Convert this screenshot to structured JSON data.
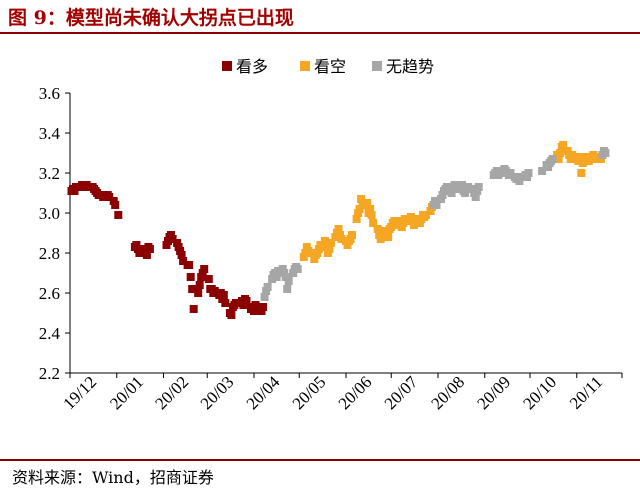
{
  "header": {
    "title": "图 9：模型尚未确认大拐点已出现"
  },
  "footer": {
    "source": "资料来源：Wind，招商证券"
  },
  "colors": {
    "bullish": "#8b0000",
    "bearish": "#f5a623",
    "neutral": "#a6a6a6",
    "rule": "#8a0000",
    "title": "#a30000"
  },
  "chart_data": {
    "type": "scatter",
    "title": "",
    "xlabel": "",
    "ylabel": "",
    "ylim": [
      2.2,
      3.6
    ],
    "yticks": [
      "2.2",
      "2.4",
      "2.6",
      "2.8",
      "3.0",
      "3.2",
      "3.4",
      "3.6"
    ],
    "xticks": [
      "19/12",
      "20/01",
      "20/02",
      "20/03",
      "20/04",
      "20/05",
      "20/06",
      "20/07",
      "20/08",
      "20/09",
      "20/10",
      "20/11"
    ],
    "xlim": [
      "2019-12-01",
      "2020-11-30"
    ],
    "grid": false,
    "legend_position": "top-center",
    "series": [
      {
        "name": "看多",
        "color": "#8b0000",
        "points": [
          [
            "2019-12-02",
            3.11
          ],
          [
            "2019-12-03",
            3.12
          ],
          [
            "2019-12-04",
            3.11
          ],
          [
            "2019-12-05",
            3.13
          ],
          [
            "2019-12-06",
            3.13
          ],
          [
            "2019-12-09",
            3.14
          ],
          [
            "2019-12-10",
            3.14
          ],
          [
            "2019-12-11",
            3.13
          ],
          [
            "2019-12-12",
            3.14
          ],
          [
            "2019-12-13",
            3.13
          ],
          [
            "2019-12-16",
            3.13
          ],
          [
            "2019-12-17",
            3.12
          ],
          [
            "2019-12-18",
            3.11
          ],
          [
            "2019-12-19",
            3.1
          ],
          [
            "2019-12-20",
            3.09
          ],
          [
            "2019-12-23",
            3.08
          ],
          [
            "2019-12-24",
            3.09
          ],
          [
            "2019-12-25",
            3.08
          ],
          [
            "2019-12-26",
            3.09
          ],
          [
            "2019-12-27",
            3.08
          ],
          [
            "2019-12-30",
            3.06
          ],
          [
            "2019-12-31",
            3.04
          ],
          [
            "2020-01-02",
            2.99
          ],
          [
            "2020-01-13",
            2.83
          ],
          [
            "2020-01-14",
            2.84
          ],
          [
            "2020-01-15",
            2.82
          ],
          [
            "2020-01-16",
            2.8
          ],
          [
            "2020-01-17",
            2.82
          ],
          [
            "2020-01-20",
            2.8
          ],
          [
            "2020-01-21",
            2.79
          ],
          [
            "2020-01-22",
            2.83
          ],
          [
            "2020-01-23",
            2.82
          ],
          [
            "2020-02-03",
            2.84
          ],
          [
            "2020-02-04",
            2.86
          ],
          [
            "2020-02-05",
            2.88
          ],
          [
            "2020-02-06",
            2.89
          ],
          [
            "2020-02-07",
            2.87
          ],
          [
            "2020-02-10",
            2.85
          ],
          [
            "2020-02-11",
            2.83
          ],
          [
            "2020-02-12",
            2.81
          ],
          [
            "2020-02-13",
            2.79
          ],
          [
            "2020-02-14",
            2.76
          ],
          [
            "2020-02-17",
            2.74
          ],
          [
            "2020-02-18",
            2.74
          ],
          [
            "2020-02-19",
            2.68
          ],
          [
            "2020-02-20",
            2.62
          ],
          [
            "2020-02-21",
            2.52
          ],
          [
            "2020-02-24",
            2.6
          ],
          [
            "2020-02-25",
            2.64
          ],
          [
            "2020-02-26",
            2.68
          ],
          [
            "2020-02-27",
            2.7
          ],
          [
            "2020-02-28",
            2.72
          ],
          [
            "2020-03-02",
            2.67
          ],
          [
            "2020-03-03",
            2.62
          ],
          [
            "2020-03-04",
            2.62
          ],
          [
            "2020-03-05",
            2.6
          ],
          [
            "2020-03-06",
            2.61
          ],
          [
            "2020-03-09",
            2.59
          ],
          [
            "2020-03-10",
            2.6
          ],
          [
            "2020-03-11",
            2.57
          ],
          [
            "2020-03-12",
            2.59
          ],
          [
            "2020-03-13",
            2.55
          ],
          [
            "2020-03-16",
            2.5
          ],
          [
            "2020-03-17",
            2.49
          ],
          [
            "2020-03-18",
            2.53
          ],
          [
            "2020-03-19",
            2.54
          ],
          [
            "2020-03-20",
            2.55
          ],
          [
            "2020-03-23",
            2.55
          ],
          [
            "2020-03-24",
            2.56
          ],
          [
            "2020-03-25",
            2.54
          ],
          [
            "2020-03-26",
            2.57
          ],
          [
            "2020-03-27",
            2.56
          ],
          [
            "2020-03-30",
            2.52
          ],
          [
            "2020-03-31",
            2.53
          ],
          [
            "2020-04-01",
            2.51
          ],
          [
            "2020-04-02",
            2.54
          ],
          [
            "2020-04-03",
            2.52
          ],
          [
            "2020-04-06",
            2.51
          ],
          [
            "2020-04-07",
            2.53
          ]
        ]
      },
      {
        "name": "看空",
        "color": "#f5a623",
        "points": [
          [
            "2020-05-04",
            2.78
          ],
          [
            "2020-05-05",
            2.8
          ],
          [
            "2020-05-06",
            2.83
          ],
          [
            "2020-05-07",
            2.81
          ],
          [
            "2020-05-08",
            2.8
          ],
          [
            "2020-05-11",
            2.77
          ],
          [
            "2020-05-12",
            2.79
          ],
          [
            "2020-05-13",
            2.8
          ],
          [
            "2020-05-14",
            2.82
          ],
          [
            "2020-05-15",
            2.84
          ],
          [
            "2020-05-18",
            2.86
          ],
          [
            "2020-05-19",
            2.83
          ],
          [
            "2020-05-20",
            2.8
          ],
          [
            "2020-05-21",
            2.82
          ],
          [
            "2020-05-22",
            2.85
          ],
          [
            "2020-05-25",
            2.88
          ],
          [
            "2020-05-26",
            2.9
          ],
          [
            "2020-05-27",
            2.92
          ],
          [
            "2020-05-28",
            2.89
          ],
          [
            "2020-05-29",
            2.87
          ],
          [
            "2020-06-01",
            2.86
          ],
          [
            "2020-06-02",
            2.84
          ],
          [
            "2020-06-03",
            2.86
          ],
          [
            "2020-06-04",
            2.87
          ],
          [
            "2020-06-05",
            2.89
          ],
          [
            "2020-06-08",
            2.97
          ],
          [
            "2020-06-09",
            3.0
          ],
          [
            "2020-06-10",
            3.02
          ],
          [
            "2020-06-11",
            3.07
          ],
          [
            "2020-06-12",
            3.04
          ],
          [
            "2020-06-15",
            3.05
          ],
          [
            "2020-06-16",
            3.0
          ],
          [
            "2020-06-17",
            3.02
          ],
          [
            "2020-06-18",
            2.99
          ],
          [
            "2020-06-19",
            2.95
          ],
          [
            "2020-06-22",
            2.92
          ],
          [
            "2020-06-23",
            2.89
          ],
          [
            "2020-06-24",
            2.87
          ],
          [
            "2020-06-25",
            2.89
          ],
          [
            "2020-06-26",
            2.91
          ],
          [
            "2020-06-29",
            2.88
          ],
          [
            "2020-06-30",
            2.92
          ],
          [
            "2020-07-01",
            2.93
          ],
          [
            "2020-07-02",
            2.95
          ],
          [
            "2020-07-03",
            2.96
          ],
          [
            "2020-07-06",
            2.94
          ],
          [
            "2020-07-07",
            2.96
          ],
          [
            "2020-07-08",
            2.93
          ],
          [
            "2020-07-09",
            2.95
          ],
          [
            "2020-07-10",
            2.97
          ],
          [
            "2020-07-13",
            2.96
          ],
          [
            "2020-07-14",
            2.98
          ],
          [
            "2020-07-15",
            2.96
          ],
          [
            "2020-07-16",
            2.94
          ],
          [
            "2020-07-17",
            2.97
          ],
          [
            "2020-07-20",
            2.95
          ],
          [
            "2020-07-21",
            2.97
          ],
          [
            "2020-07-22",
            2.99
          ],
          [
            "2020-07-23",
            2.98
          ],
          [
            "2020-07-24",
            2.99
          ],
          [
            "2020-07-27",
            3.01
          ],
          [
            "2020-07-28",
            3.03
          ],
          [
            "2020-10-19",
            3.29
          ],
          [
            "2020-10-20",
            3.27
          ],
          [
            "2020-10-21",
            3.3
          ],
          [
            "2020-10-22",
            3.33
          ],
          [
            "2020-10-23",
            3.34
          ],
          [
            "2020-10-26",
            3.31
          ],
          [
            "2020-10-27",
            3.29
          ],
          [
            "2020-10-28",
            3.27
          ],
          [
            "2020-10-29",
            3.29
          ],
          [
            "2020-10-30",
            3.28
          ],
          [
            "2020-11-02",
            3.26
          ],
          [
            "2020-11-03",
            3.28
          ],
          [
            "2020-11-04",
            3.2
          ],
          [
            "2020-11-05",
            3.25
          ],
          [
            "2020-11-06",
            3.28
          ],
          [
            "2020-11-09",
            3.26
          ],
          [
            "2020-11-10",
            3.27
          ],
          [
            "2020-11-11",
            3.28
          ],
          [
            "2020-11-12",
            3.29
          ],
          [
            "2020-11-13",
            3.27
          ],
          [
            "2020-11-16",
            3.28
          ],
          [
            "2020-11-17",
            3.27
          ]
        ]
      },
      {
        "name": "无趋势",
        "color": "#a6a6a6",
        "points": [
          [
            "2020-04-08",
            2.58
          ],
          [
            "2020-04-09",
            2.61
          ],
          [
            "2020-04-10",
            2.63
          ],
          [
            "2020-04-13",
            2.67
          ],
          [
            "2020-04-14",
            2.69
          ],
          [
            "2020-04-15",
            2.7
          ],
          [
            "2020-04-16",
            2.68
          ],
          [
            "2020-04-17",
            2.71
          ],
          [
            "2020-04-20",
            2.72
          ],
          [
            "2020-04-21",
            2.7
          ],
          [
            "2020-04-22",
            2.68
          ],
          [
            "2020-04-23",
            2.62
          ],
          [
            "2020-04-24",
            2.66
          ],
          [
            "2020-04-27",
            2.7
          ],
          [
            "2020-04-28",
            2.72
          ],
          [
            "2020-04-29",
            2.73
          ],
          [
            "2020-04-30",
            2.72
          ],
          [
            "2020-07-29",
            3.04
          ],
          [
            "2020-07-30",
            3.06
          ],
          [
            "2020-07-31",
            3.04
          ],
          [
            "2020-08-03",
            3.07
          ],
          [
            "2020-08-04",
            3.09
          ],
          [
            "2020-08-05",
            3.11
          ],
          [
            "2020-08-06",
            3.12
          ],
          [
            "2020-08-07",
            3.13
          ],
          [
            "2020-08-10",
            3.1
          ],
          [
            "2020-08-11",
            3.12
          ],
          [
            "2020-08-12",
            3.14
          ],
          [
            "2020-08-13",
            3.12
          ],
          [
            "2020-08-14",
            3.13
          ],
          [
            "2020-08-17",
            3.14
          ],
          [
            "2020-08-18",
            3.11
          ],
          [
            "2020-08-19",
            3.1
          ],
          [
            "2020-08-20",
            3.12
          ],
          [
            "2020-08-21",
            3.13
          ],
          [
            "2020-08-24",
            3.12
          ],
          [
            "2020-08-25",
            3.1
          ],
          [
            "2020-08-26",
            3.08
          ],
          [
            "2020-08-27",
            3.11
          ],
          [
            "2020-08-28",
            3.13
          ],
          [
            "2020-09-07",
            3.19
          ],
          [
            "2020-09-08",
            3.2
          ],
          [
            "2020-09-09",
            3.21
          ],
          [
            "2020-09-10",
            3.19
          ],
          [
            "2020-09-11",
            3.2
          ],
          [
            "2020-09-14",
            3.22
          ],
          [
            "2020-09-15",
            3.21
          ],
          [
            "2020-09-16",
            3.2
          ],
          [
            "2020-09-17",
            3.19
          ],
          [
            "2020-09-18",
            3.2
          ],
          [
            "2020-09-21",
            3.18
          ],
          [
            "2020-09-22",
            3.17
          ],
          [
            "2020-09-23",
            3.18
          ],
          [
            "2020-09-24",
            3.16
          ],
          [
            "2020-09-25",
            3.18
          ],
          [
            "2020-09-28",
            3.19
          ],
          [
            "2020-09-29",
            3.18
          ],
          [
            "2020-09-30",
            3.2
          ],
          [
            "2020-10-09",
            3.21
          ],
          [
            "2020-10-12",
            3.24
          ],
          [
            "2020-10-13",
            3.23
          ],
          [
            "2020-10-14",
            3.25
          ],
          [
            "2020-10-15",
            3.26
          ],
          [
            "2020-10-16",
            3.27
          ],
          [
            "2020-11-18",
            3.29
          ],
          [
            "2020-11-19",
            3.31
          ],
          [
            "2020-11-20",
            3.3
          ]
        ]
      }
    ]
  }
}
